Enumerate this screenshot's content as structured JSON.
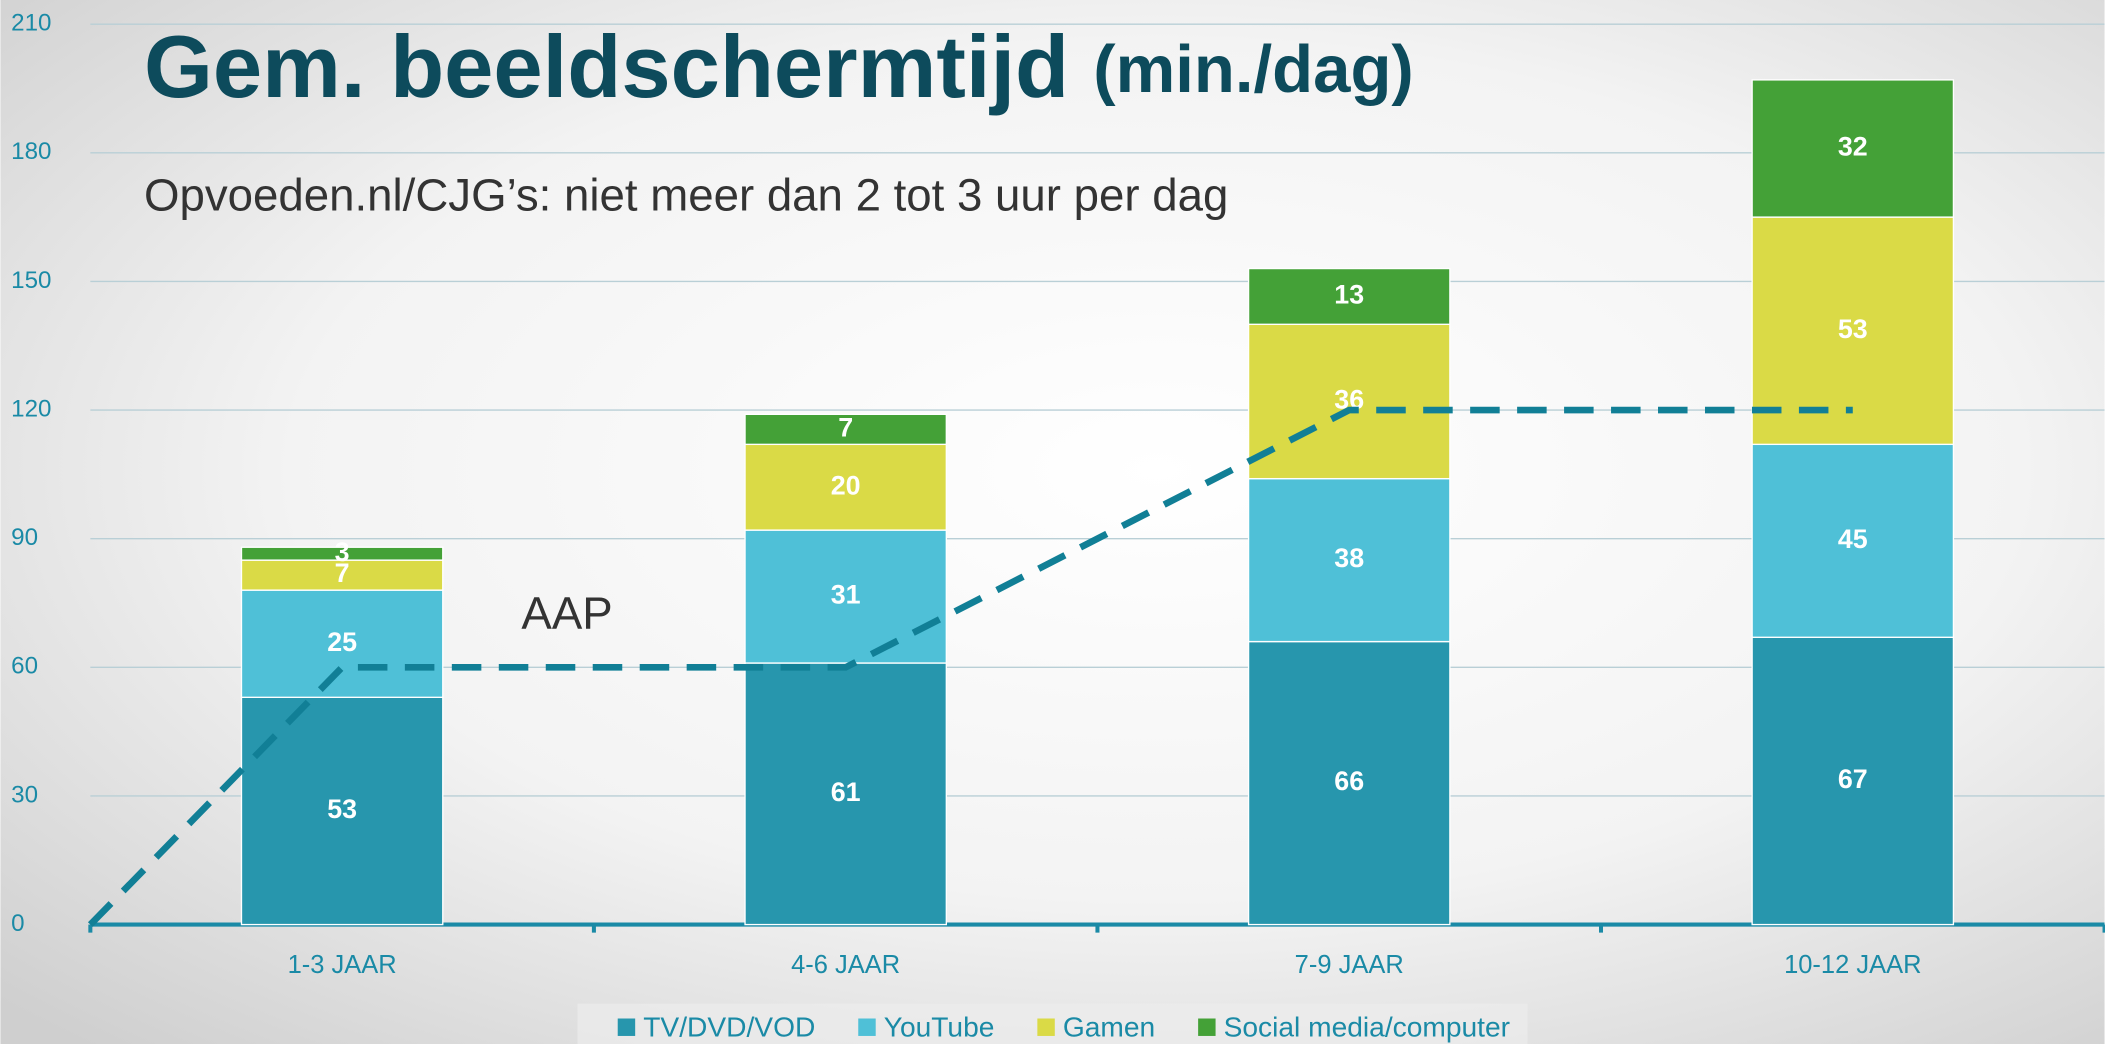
{
  "chart_data": {
    "type": "stacked_bar",
    "title": "Gem. beeldschermtijd",
    "title_unit": "(min./dag)",
    "subtitle": "Opvoeden.nl/CJG’s: niet meer dan 2 tot 3 uur per dag",
    "categories": [
      "1-3 JAAR",
      "4-6 JAAR",
      "7-9 JAAR",
      "10-12 JAAR"
    ],
    "series": [
      {
        "name": "TV/DVD/VOD",
        "color": "#2796ad",
        "values": [
          53,
          61,
          66,
          67
        ]
      },
      {
        "name": "YouTube",
        "color": "#4fc0d7",
        "values": [
          25,
          31,
          38,
          45
        ]
      },
      {
        "name": "Gamen",
        "color": "#dada46",
        "values": [
          7,
          20,
          36,
          53
        ]
      },
      {
        "name": "Social media/computer",
        "color": "#44a137",
        "values": [
          3,
          7,
          13,
          32
        ]
      }
    ],
    "reference_line": {
      "name": "AAP",
      "color": "#117f96",
      "x": [
        -0.5,
        0,
        1,
        2,
        3
      ],
      "values": [
        0,
        60,
        60,
        120,
        120
      ]
    },
    "ylim": [
      0,
      210
    ],
    "yticks": [
      0,
      30,
      60,
      90,
      120,
      150,
      180,
      210
    ],
    "grid": true,
    "legend": "bottom"
  }
}
